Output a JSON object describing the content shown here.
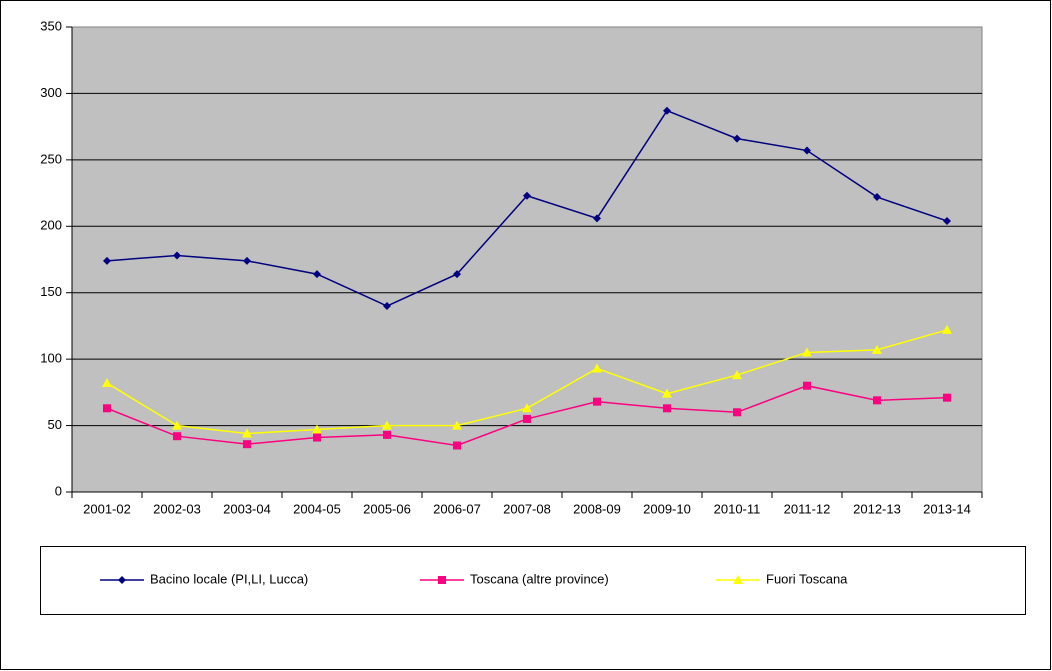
{
  "chart_data": {
    "type": "line",
    "categories": [
      "2001-02",
      "2002-03",
      "2003-04",
      "2004-05",
      "2005-06",
      "2006-07",
      "2007-08",
      "2008-09",
      "2009-10",
      "2010-11",
      "2011-12",
      "2012-13",
      "2013-14"
    ],
    "series": [
      {
        "name": "Bacino locale (PI,LI, Lucca)",
        "color": "#000080",
        "marker": "diamond",
        "values": [
          174,
          178,
          174,
          164,
          140,
          164,
          223,
          206,
          287,
          266,
          257,
          222,
          204
        ]
      },
      {
        "name": "Toscana (altre province)",
        "color": "#ff0080",
        "marker": "square",
        "values": [
          63,
          42,
          36,
          41,
          43,
          35,
          55,
          68,
          63,
          60,
          80,
          69,
          71
        ]
      },
      {
        "name": "Fuori Toscana",
        "color": "#ffff00",
        "marker": "triangle",
        "values": [
          82,
          50,
          44,
          47,
          50,
          50,
          63,
          93,
          74,
          88,
          105,
          107,
          122
        ]
      }
    ],
    "ylim": [
      0,
      350
    ],
    "yticks": [
      0,
      50,
      100,
      150,
      200,
      250,
      300,
      350
    ],
    "grid": true,
    "legend": "bottom"
  }
}
